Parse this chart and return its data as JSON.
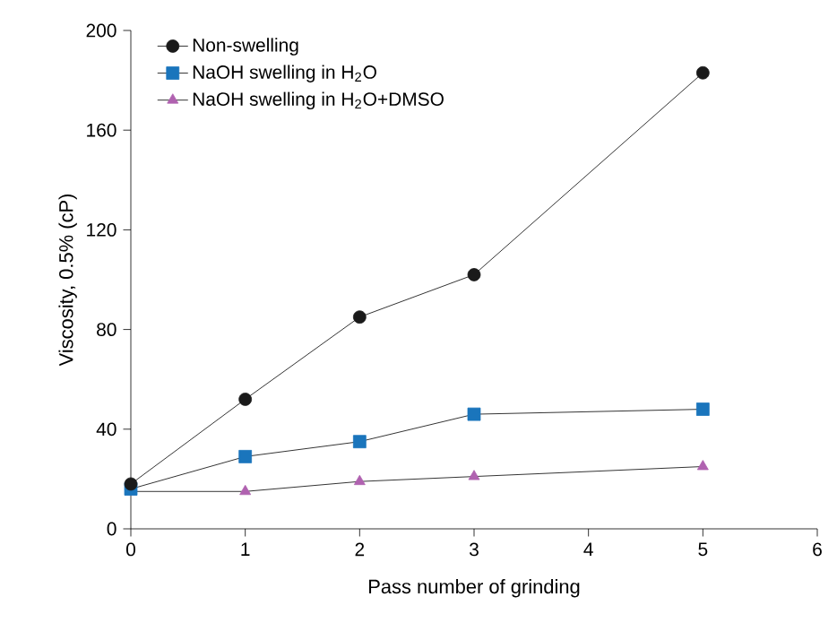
{
  "chart_data": {
    "type": "line",
    "xlabel": "Pass number of grinding",
    "ylabel": "Viscosity, 0.5% (cP)",
    "x": [
      0,
      1,
      2,
      3,
      5
    ],
    "series": [
      {
        "name": "Non-swelling",
        "color": "#1a1a1a",
        "marker": "circle",
        "values": [
          18,
          52,
          85,
          102,
          183
        ]
      },
      {
        "name": "NaOH swelling in H$_{2}$O",
        "color": "#1a75bc",
        "marker": "square",
        "values": [
          16,
          29,
          35,
          46,
          48
        ]
      },
      {
        "name": "NaOH swelling in H$_{2}$O+DMSO",
        "color": "#b062b0",
        "marker": "triangle",
        "values": [
          15,
          15,
          19,
          21,
          25
        ]
      }
    ],
    "xlim": [
      0,
      6
    ],
    "xticks": [
      0,
      1,
      2,
      3,
      4,
      5,
      6
    ],
    "ylim": [
      0,
      200
    ],
    "yticks": [
      0,
      40,
      80,
      120,
      160,
      200
    ],
    "grid": false,
    "legend": "top left",
    "line_style": "solid"
  }
}
